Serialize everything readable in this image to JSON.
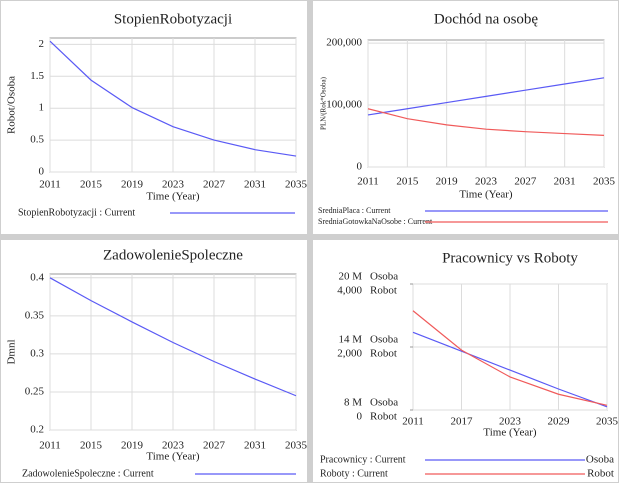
{
  "chart_data": [
    {
      "type": "line",
      "title": "StopienRobotyzacji",
      "ylabel": "Robot/Osoba",
      "xlabel": "Time (Year)",
      "x": [
        2011,
        2015,
        2019,
        2023,
        2027,
        2031,
        2035
      ],
      "series": [
        {
          "name": "StopienRobotyzacji : Current",
          "color": "#5a5af5",
          "values": [
            2.05,
            1.44,
            1.01,
            0.71,
            0.5,
            0.35,
            0.25
          ]
        }
      ],
      "xlim": [
        2011,
        2035
      ],
      "xticks": [
        2011,
        2015,
        2019,
        2023,
        2027,
        2031,
        2035
      ],
      "ylim": [
        0,
        2.1
      ],
      "yticks": [
        0,
        0.5,
        1,
        1.5,
        2
      ],
      "grid": true
    },
    {
      "type": "line",
      "title": "Dochód na osobę",
      "ylabel": "PLN/(Rok*Osoba)",
      "xlabel": "Time (Year)",
      "x": [
        2011,
        2015,
        2019,
        2023,
        2027,
        2031,
        2035
      ],
      "series": [
        {
          "name": "SredniaPlaca : Current",
          "color": "#5a5af5",
          "values": [
            84000,
            94000,
            104000,
            114000,
            124000,
            134000,
            144000
          ]
        },
        {
          "name": "SredniaGotowkaNaOsobe : Current",
          "color": "#f05a5a",
          "values": [
            94000,
            78000,
            68000,
            61000,
            57000,
            54000,
            51000
          ]
        }
      ],
      "xlim": [
        2011,
        2035
      ],
      "xticks": [
        2011,
        2015,
        2019,
        2023,
        2027,
        2031,
        2035
      ],
      "ylim": [
        0,
        205000
      ],
      "yticks": [
        0,
        {
          "value": 100000,
          "label": "100,000"
        },
        {
          "value": 200000,
          "label": "200,000"
        }
      ],
      "grid": true
    },
    {
      "type": "line",
      "title": "ZadowolenieSpoleczne",
      "ylabel": "Dmnl",
      "xlabel": "Time (Year)",
      "x": [
        2011,
        2015,
        2019,
        2023,
        2027,
        2031,
        2035
      ],
      "series": [
        {
          "name": "ZadowolenieSpoleczne : Current",
          "color": "#5a5af5",
          "values": [
            0.4,
            0.37,
            0.342,
            0.315,
            0.29,
            0.267,
            0.245
          ]
        }
      ],
      "xlim": [
        2011,
        2035
      ],
      "xticks": [
        2011,
        2015,
        2019,
        2023,
        2027,
        2031,
        2035
      ],
      "ylim": [
        0.2,
        0.405
      ],
      "yticks": [
        0.2,
        0.25,
        0.3,
        0.35,
        0.4
      ],
      "grid": true
    },
    {
      "type": "line",
      "title": "Pracownicy vs Roboty",
      "ylabel": "Osoba",
      "y2label": "Robot",
      "xlabel": "Time (Year)",
      "x": [
        2011,
        2017,
        2023,
        2029,
        2035
      ],
      "series": [
        {
          "name": "Pracownicy : Current",
          "color": "#5a5af5",
          "values": [
            15400000,
            13600000,
            11800000,
            10000000,
            8300000
          ]
        },
        {
          "name": "Roboty : Current",
          "color": "#f05a5a",
          "axis": "y2",
          "values": [
            3150,
            1900,
            1050,
            500,
            150
          ]
        }
      ],
      "xlim": [
        2011,
        2035
      ],
      "xticks": [
        2011,
        2017,
        2023,
        2029,
        2035
      ],
      "ylim": [
        8000000,
        20000000
      ],
      "yticks": [
        {
          "value": 8000000,
          "label": "8 M"
        },
        {
          "value": 14000000,
          "label": "14 M"
        },
        {
          "value": 20000000,
          "label": "20 M"
        }
      ],
      "y2lim": [
        0,
        4000
      ],
      "y2ticks": [
        0,
        {
          "value": 2000,
          "label": "2,000"
        },
        {
          "value": 4000,
          "label": "4,000"
        }
      ],
      "grid": true
    }
  ]
}
